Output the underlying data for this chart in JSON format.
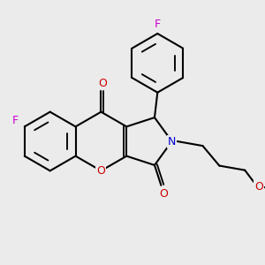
{
  "bg_color": "#ebebeb",
  "bond_color": "#000000",
  "atom_colors": {
    "F": "#cc00cc",
    "O": "#cc0000",
    "N": "#0000cc"
  },
  "line_width": 1.5,
  "font_size": 9.0,
  "fig_size": [
    3.0,
    3.0
  ],
  "dpi": 100
}
